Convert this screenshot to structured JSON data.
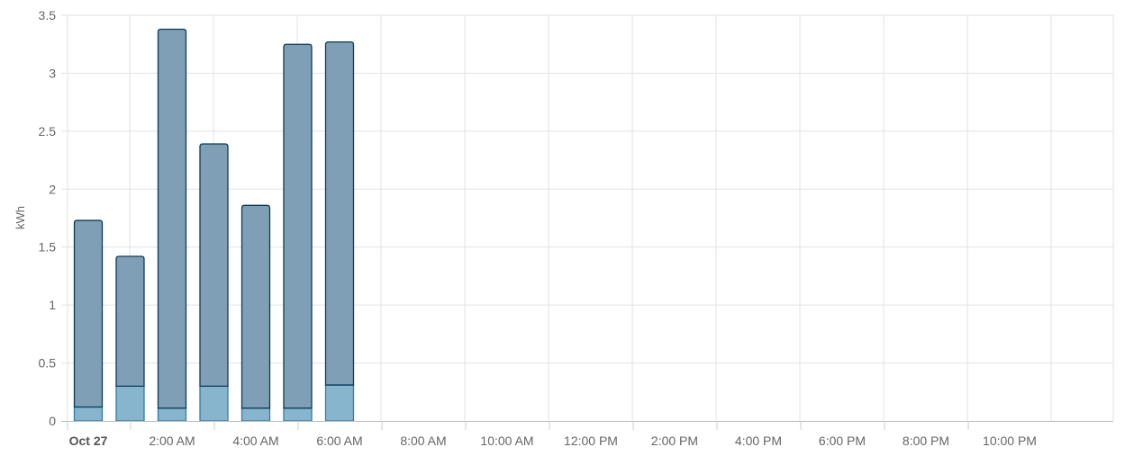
{
  "chart_data": {
    "type": "bar",
    "stacked": true,
    "ylabel": "kWh",
    "ylim": [
      0,
      3.5
    ],
    "y_ticks": [
      "0",
      "0.5",
      "1",
      "1.5",
      "2",
      "2.5",
      "3",
      "3.5"
    ],
    "x_tick_labels": [
      "Oct 27",
      "2:00 AM",
      "4:00 AM",
      "6:00 AM",
      "8:00 AM",
      "10:00 AM",
      "12:00 PM",
      "2:00 PM",
      "4:00 PM",
      "6:00 PM",
      "8:00 PM",
      "10:00 PM"
    ],
    "hours": 24,
    "grid": true,
    "categories": [
      "12:00 AM",
      "1:00 AM",
      "2:00 AM",
      "3:00 AM",
      "4:00 AM",
      "5:00 AM",
      "6:00 AM"
    ],
    "series": [
      {
        "values": [
          0.12,
          0.3,
          0.11,
          0.3,
          0.11,
          0.11,
          0.31
        ],
        "color": "#86b5cd",
        "stroke": "#2f7ea8"
      },
      {
        "values": [
          1.61,
          1.12,
          3.27,
          2.09,
          1.75,
          3.14,
          2.96
        ],
        "color": "#7e9fb5",
        "stroke": "#0f3a5a"
      }
    ]
  }
}
